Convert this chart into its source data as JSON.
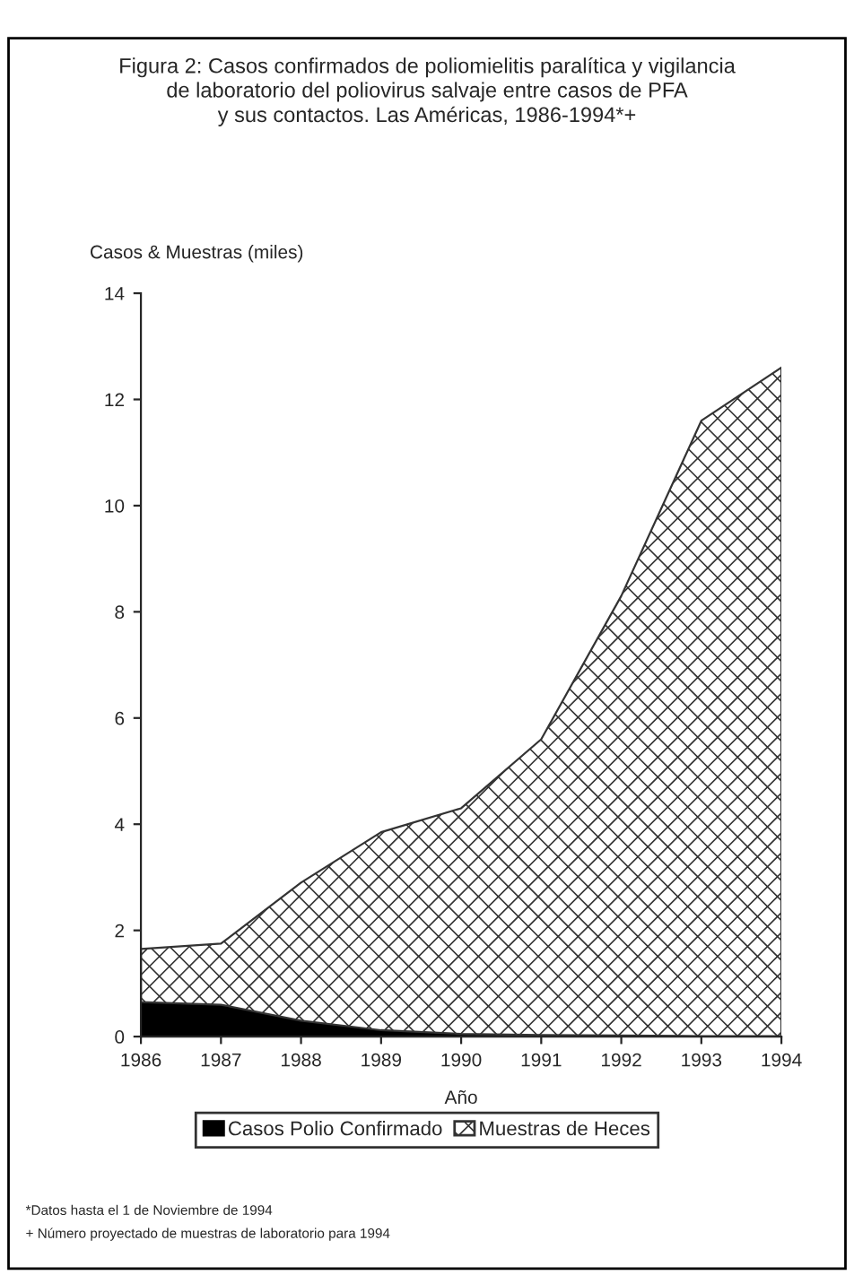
{
  "chart_data": {
    "type": "area",
    "title": "Figura 2: Casos confirmados de poliomielitis paralítica y vigilancia\nde laboratorio del poliovirus salvaje entre casos de PFA\ny sus contactos. Las Américas, 1986-1994*+",
    "ylabel": "Casos & Muestras (miles)",
    "xlabel": "Año",
    "x": [
      1986,
      1987,
      1988,
      1989,
      1990,
      1991,
      1992,
      1993,
      1994
    ],
    "series": [
      {
        "name": "Casos Polio Confirmado",
        "color": "#000000",
        "values": [
          0.65,
          0.6,
          0.3,
          0.12,
          0.05,
          0.03,
          0.02,
          0.01,
          0.01
        ]
      },
      {
        "name": "Muestras de Heces",
        "color": "#333333",
        "values": [
          1.0,
          1.15,
          2.6,
          3.73,
          4.25,
          5.57,
          8.28,
          11.59,
          12.59
        ]
      }
    ],
    "stacked": true,
    "xlim": [
      1986,
      1994
    ],
    "xticks": [
      1986,
      1987,
      1988,
      1989,
      1990,
      1991,
      1992,
      1993,
      1994
    ],
    "ylim": [
      0,
      14
    ],
    "yticks": [
      0,
      2,
      4,
      6,
      8,
      10,
      12,
      14
    ],
    "grid": false,
    "legend": "bottom",
    "annotations": [
      "*Datos hasta el 1 de Noviembre de 1994",
      "+ Número proyectado de muestras de laboratorio para 1994"
    ]
  }
}
